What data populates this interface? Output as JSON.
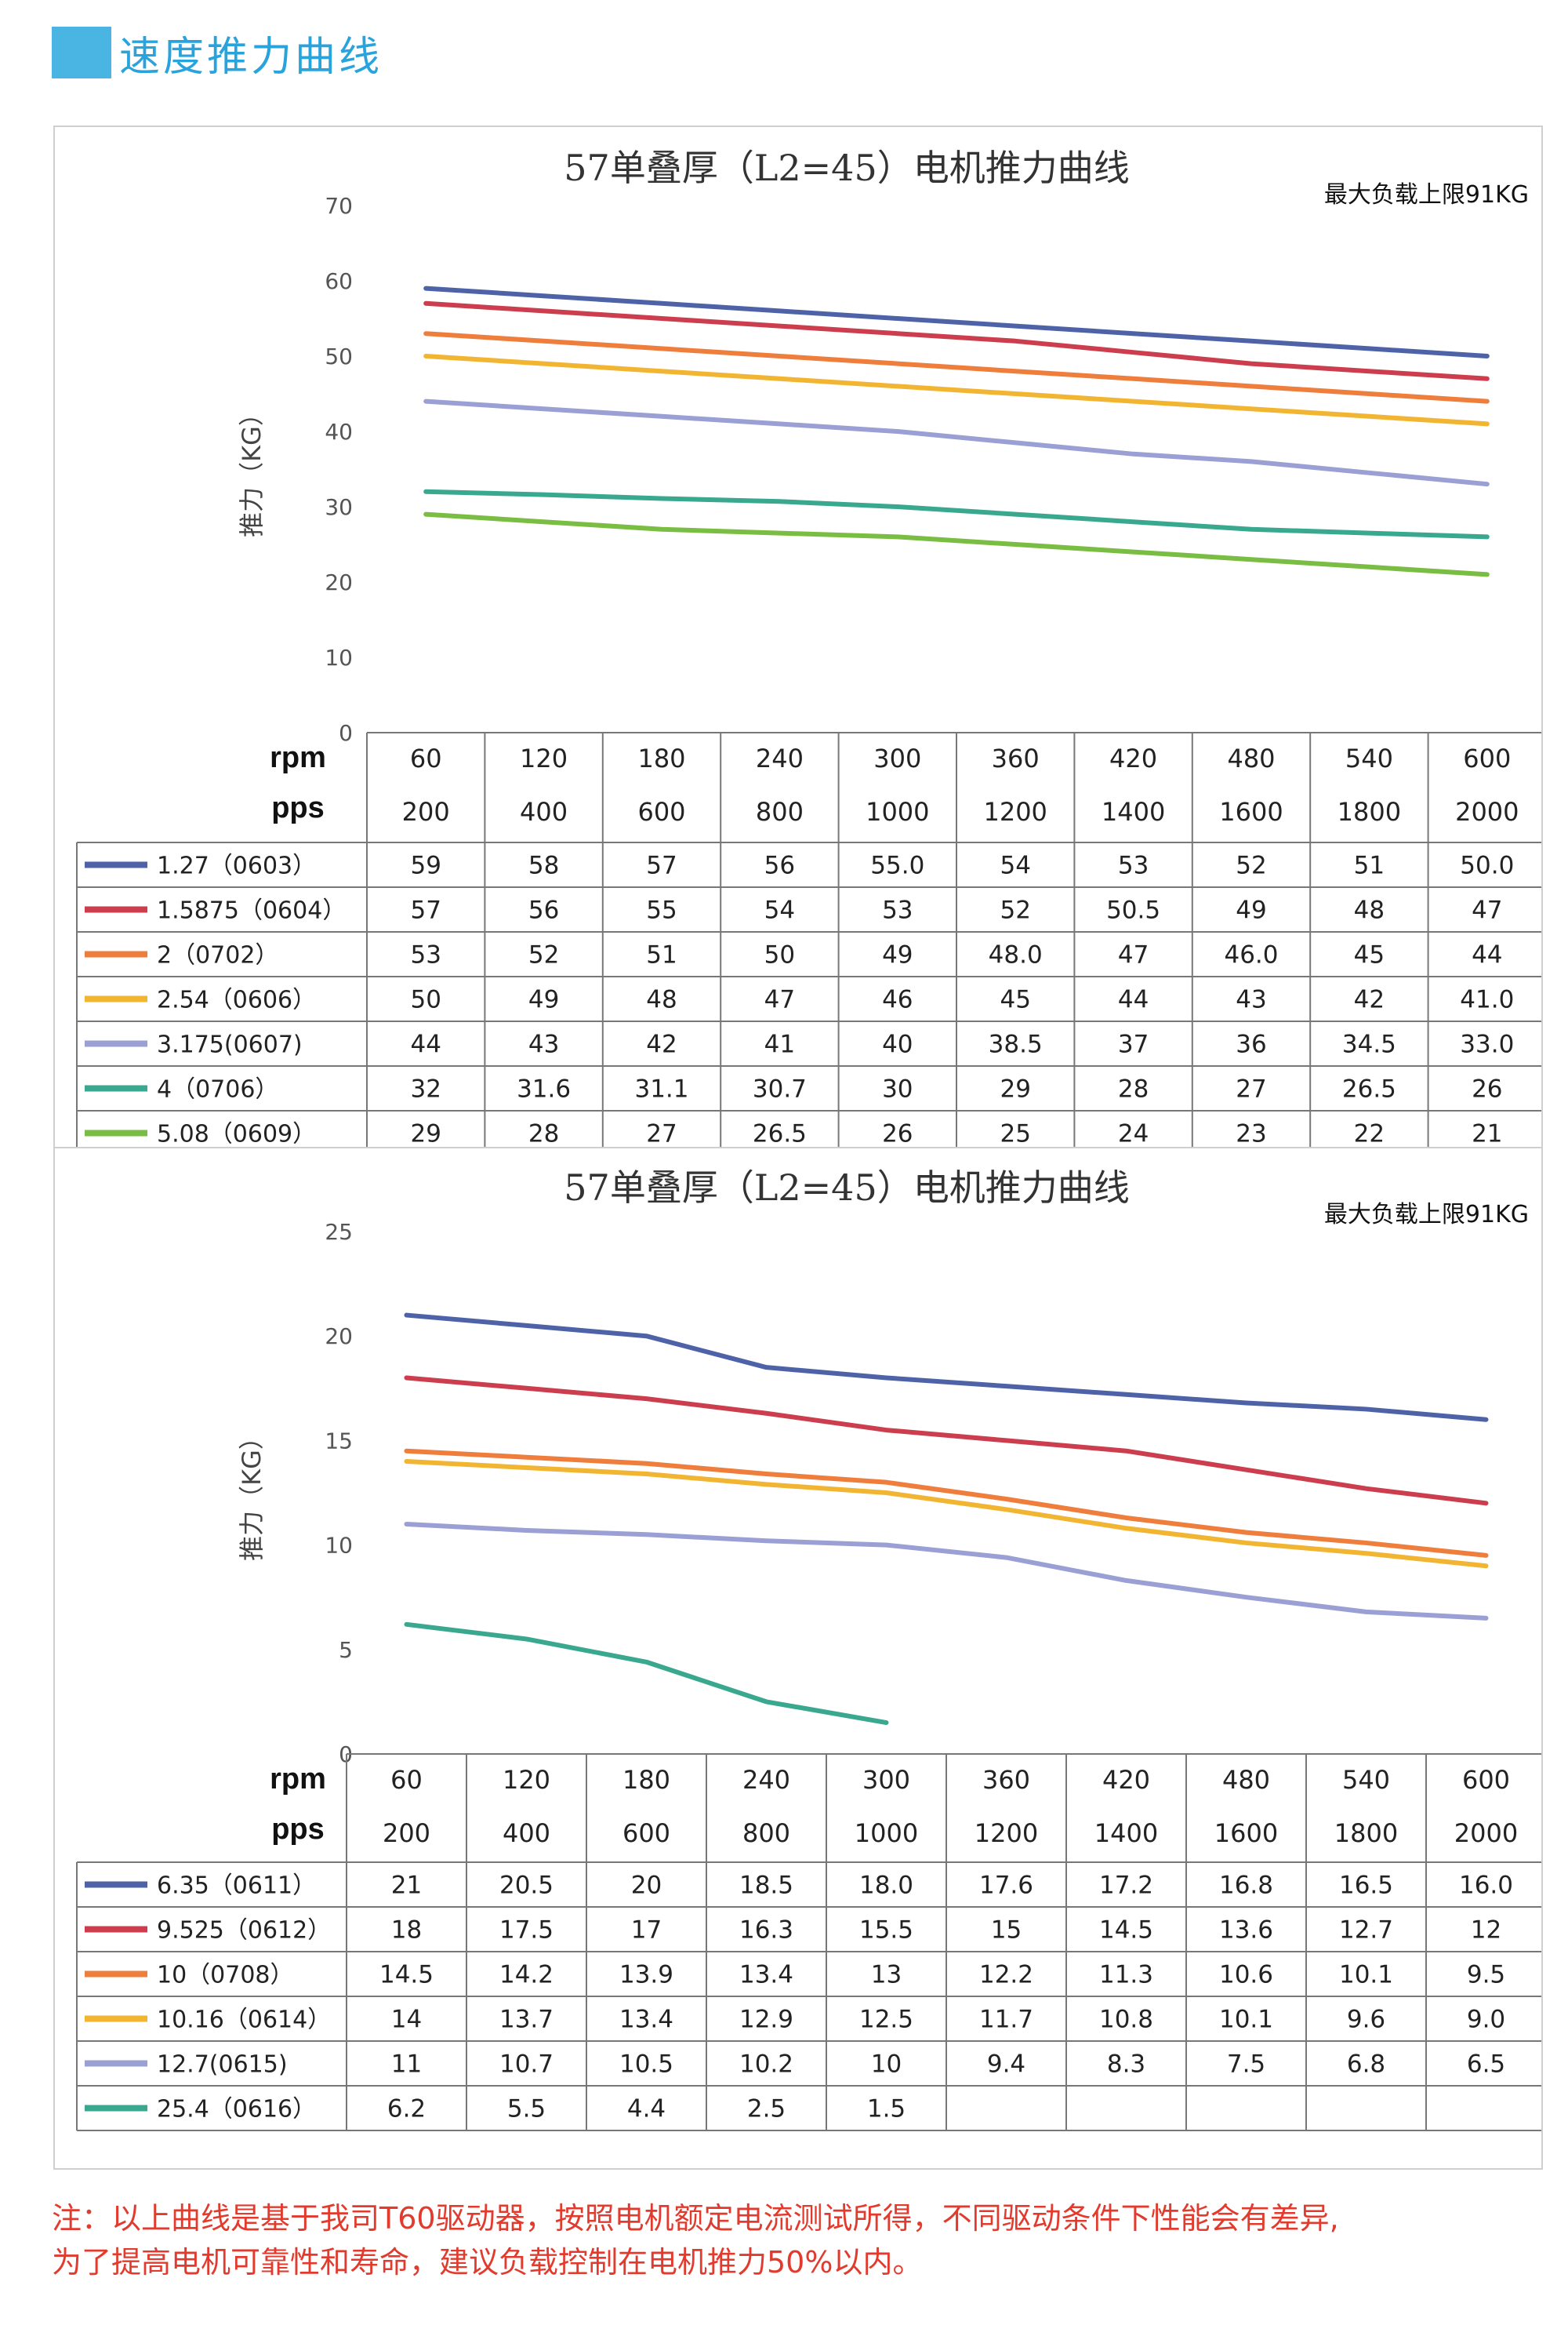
{
  "header": {
    "title": "速度推力曲线"
  },
  "note": {
    "line1": "注：以上曲线是基于我司T60驱动器，按照电机额定电流测试所得，不同驱动条件下性能会有差异,",
    "line2": "为了提高电机可靠性和寿命，建议负载控制在电机推力50%以内。"
  },
  "chart_data": [
    {
      "type": "line",
      "title": "57单叠厚（L2=45）电机推力曲线",
      "subtitle": "最大负载上限91KG",
      "ylabel": "推力（KG）",
      "ylim": [
        0,
        70
      ],
      "yticks": [
        0,
        10,
        20,
        30,
        40,
        50,
        60,
        70
      ],
      "row_labels": [
        "rpm",
        "pps"
      ],
      "categories": [
        "60",
        "120",
        "180",
        "240",
        "300",
        "360",
        "420",
        "480",
        "540",
        "600"
      ],
      "categories2": [
        "200",
        "400",
        "600",
        "800",
        "1000",
        "1200",
        "1400",
        "1600",
        "1800",
        "2000"
      ],
      "series": [
        {
          "name": "1.27（0603）",
          "color": "#4e62a8",
          "values": [
            59,
            58,
            57,
            56,
            55.0,
            54,
            53,
            52,
            51,
            50.0
          ],
          "labels": [
            "59",
            "58",
            "57",
            "56",
            "55.0",
            "54",
            "53",
            "52",
            "51",
            "50.0"
          ]
        },
        {
          "name": "1.5875（0604）",
          "color": "#cc3d4e",
          "values": [
            57,
            56,
            55,
            54,
            53,
            52,
            50.5,
            49,
            48,
            47
          ],
          "labels": [
            "57",
            "56",
            "55",
            "54",
            "53",
            "52",
            "50.5",
            "49",
            "48",
            "47"
          ]
        },
        {
          "name": "2（0702）",
          "color": "#ef7d3c",
          "values": [
            53,
            52,
            51,
            50,
            49,
            48.0,
            47,
            46.0,
            45,
            44
          ],
          "labels": [
            "53",
            "52",
            "51",
            "50",
            "49",
            "48.0",
            "47",
            "46.0",
            "45",
            "44"
          ]
        },
        {
          "name": "2.54（0606）",
          "color": "#f2b531",
          "values": [
            50,
            49,
            48,
            47,
            46,
            45,
            44,
            43,
            42,
            41.0
          ],
          "labels": [
            "50",
            "49",
            "48",
            "47",
            "46",
            "45",
            "44",
            "43",
            "42",
            "41.0"
          ]
        },
        {
          "name": "3.175(0607)",
          "color": "#9a9fd4",
          "values": [
            44,
            43,
            42,
            41,
            40,
            38.5,
            37,
            36,
            34.5,
            33.0
          ],
          "labels": [
            "44",
            "43",
            "42",
            "41",
            "40",
            "38.5",
            "37",
            "36",
            "34.5",
            "33.0"
          ]
        },
        {
          "name": "4（0706）",
          "color": "#3aa88f",
          "values": [
            32,
            31.6,
            31.1,
            30.7,
            30,
            29,
            28,
            27,
            26.5,
            26
          ],
          "labels": [
            "32",
            "31.6",
            "31.1",
            "30.7",
            "30",
            "29",
            "28",
            "27",
            "26.5",
            "26"
          ]
        },
        {
          "name": "5.08（0609）",
          "color": "#79bd42",
          "values": [
            29,
            28,
            27,
            26.5,
            26,
            25,
            24,
            23,
            22,
            21
          ],
          "labels": [
            "29",
            "28",
            "27",
            "26.5",
            "26",
            "25",
            "24",
            "23",
            "22",
            "21"
          ]
        }
      ]
    },
    {
      "type": "line",
      "title": "57单叠厚（L2=45）电机推力曲线",
      "subtitle": "最大负载上限91KG",
      "ylabel": "推力（KG）",
      "ylim": [
        0,
        25
      ],
      "yticks": [
        0,
        5,
        10,
        15,
        20,
        25
      ],
      "row_labels": [
        "rpm",
        "pps"
      ],
      "categories": [
        "60",
        "120",
        "180",
        "240",
        "300",
        "360",
        "420",
        "480",
        "540",
        "600"
      ],
      "categories2": [
        "200",
        "400",
        "600",
        "800",
        "1000",
        "1200",
        "1400",
        "1600",
        "1800",
        "2000"
      ],
      "series": [
        {
          "name": "6.35（0611）",
          "color": "#4e62a8",
          "values": [
            21,
            20.5,
            20,
            18.5,
            18.0,
            17.6,
            17.2,
            16.8,
            16.5,
            16.0
          ],
          "labels": [
            "21",
            "20.5",
            "20",
            "18.5",
            "18.0",
            "17.6",
            "17.2",
            "16.8",
            "16.5",
            "16.0"
          ]
        },
        {
          "name": "9.525（0612）",
          "color": "#cc3d4e",
          "values": [
            18,
            17.5,
            17,
            16.3,
            15.5,
            15,
            14.5,
            13.6,
            12.7,
            12
          ],
          "labels": [
            "18",
            "17.5",
            "17",
            "16.3",
            "15.5",
            "15",
            "14.5",
            "13.6",
            "12.7",
            "12"
          ]
        },
        {
          "name": "10（0708）",
          "color": "#ef7d3c",
          "values": [
            14.5,
            14.2,
            13.9,
            13.4,
            13,
            12.2,
            11.3,
            10.6,
            10.1,
            9.5
          ],
          "labels": [
            "14.5",
            "14.2",
            "13.9",
            "13.4",
            "13",
            "12.2",
            "11.3",
            "10.6",
            "10.1",
            "9.5"
          ]
        },
        {
          "name": "10.16（0614）",
          "color": "#f2b531",
          "values": [
            14,
            13.7,
            13.4,
            12.9,
            12.5,
            11.7,
            10.8,
            10.1,
            9.6,
            9.0
          ],
          "labels": [
            "14",
            "13.7",
            "13.4",
            "12.9",
            "12.5",
            "11.7",
            "10.8",
            "10.1",
            "9.6",
            "9.0"
          ]
        },
        {
          "name": "12.7(0615)",
          "color": "#9a9fd4",
          "values": [
            11,
            10.7,
            10.5,
            10.2,
            10,
            9.4,
            8.3,
            7.5,
            6.8,
            6.5
          ],
          "labels": [
            "11",
            "10.7",
            "10.5",
            "10.2",
            "10",
            "9.4",
            "8.3",
            "7.5",
            "6.8",
            "6.5"
          ]
        },
        {
          "name": "25.4（0616）",
          "color": "#3aa88f",
          "values": [
            6.2,
            5.5,
            4.4,
            2.5,
            1.5,
            null,
            null,
            null,
            null,
            null
          ],
          "labels": [
            "6.2",
            "5.5",
            "4.4",
            "2.5",
            "1.5",
            "",
            "",
            "",
            "",
            ""
          ]
        }
      ]
    }
  ]
}
